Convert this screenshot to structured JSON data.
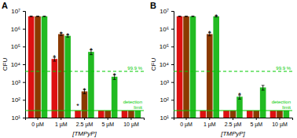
{
  "chart_data": [
    {
      "type": "bar",
      "title": "A",
      "x_label": "[TMPyP]",
      "y_label": "CFU",
      "log": "y",
      "grid": false,
      "categories": [
        "0 µM",
        "1 µM",
        "2.5 µM",
        "5 µM",
        "10 µM"
      ],
      "ylim": [
        10,
        10000000
      ],
      "yticks": [
        {
          "value": 10,
          "label": "10¹"
        },
        {
          "value": 100,
          "label": "10²"
        },
        {
          "value": 1000,
          "label": "10³"
        },
        {
          "value": 10000,
          "label": "10⁴"
        },
        {
          "value": 100000,
          "label": "10⁵"
        },
        {
          "value": 1000000,
          "label": "10⁶"
        },
        {
          "value": 10000000,
          "label": "10⁷"
        }
      ],
      "series": [
        {
          "color": "#dd1111",
          "values": [
            5000000.0,
            20000.0,
            25,
            25,
            25
          ],
          "errors": [
            200000.0,
            5000.0,
            0,
            0,
            0
          ],
          "annotations": [
            null,
            "*",
            "*",
            null,
            null
          ]
        },
        {
          "color": "#8B3A00",
          "values": [
            5000000.0,
            500000.0,
            300.0,
            25,
            25
          ],
          "errors": [
            150000.0,
            80000.0,
            80,
            0,
            0
          ],
          "annotations": [
            null,
            "*",
            "*",
            null,
            null
          ]
        },
        {
          "color": "#22bb22",
          "values": [
            5000000.0,
            400000.0,
            50000.0,
            2000.0,
            25
          ],
          "errors": [
            150000.0,
            60000.0,
            15000.0,
            600.0,
            0
          ],
          "annotations": [
            null,
            "*",
            "*",
            "*",
            null
          ]
        }
      ],
      "lines": [
        {
          "value": 4000,
          "label": "99.9 %",
          "line_style": "dashed",
          "color": "#00cc00"
        },
        {
          "value": 25,
          "label": "detection\nlimit",
          "line_style": "solid",
          "color": "#00cc00"
        }
      ]
    },
    {
      "type": "bar",
      "title": "B",
      "x_label": "[TMPyP]",
      "y_label": "CFU",
      "log": "y",
      "grid": false,
      "categories": [
        "0 µM",
        "1 µM",
        "2.5 µM",
        "5 µM",
        "10 µM"
      ],
      "ylim": [
        10,
        10000000
      ],
      "yticks": [
        {
          "value": 10,
          "label": "10¹"
        },
        {
          "value": 100,
          "label": "10²"
        },
        {
          "value": 1000,
          "label": "10³"
        },
        {
          "value": 10000,
          "label": "10⁴"
        },
        {
          "value": 100000,
          "label": "10⁵"
        },
        {
          "value": 1000000,
          "label": "10⁶"
        },
        {
          "value": 10000000,
          "label": "10⁷"
        }
      ],
      "series": [
        {
          "color": "#dd1111",
          "values": [
            5000000.0,
            25,
            25,
            25,
            25
          ],
          "errors": [
            150000.0,
            0,
            0,
            0,
            0
          ],
          "annotations": [
            null,
            null,
            null,
            null,
            null
          ]
        },
        {
          "color": "#8B3A00",
          "values": [
            5000000.0,
            500000.0,
            25,
            25,
            25
          ],
          "errors": [
            150000.0,
            100000.0,
            0,
            0,
            0
          ],
          "annotations": [
            null,
            "*",
            null,
            null,
            null
          ]
        },
        {
          "color": "#22bb22",
          "values": [
            5000000.0,
            5000000.0,
            150.0,
            500.0,
            25
          ],
          "errors": [
            200000.0,
            400000.0,
            40,
            150.0,
            0
          ],
          "annotations": [
            null,
            "*",
            "*",
            null,
            null
          ]
        }
      ],
      "lines": [
        {
          "value": 4000,
          "label": "99.9 %",
          "line_style": "dashed",
          "color": "#00cc00"
        },
        {
          "value": 25,
          "label": "detection\nlimit",
          "line_style": "solid",
          "color": "#00cc00"
        }
      ]
    }
  ]
}
